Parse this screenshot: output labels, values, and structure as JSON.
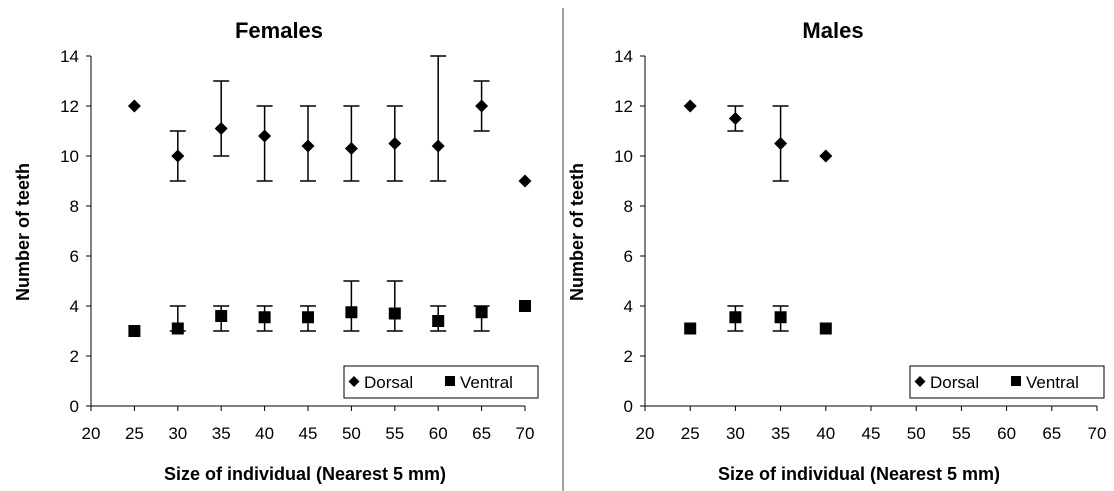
{
  "chart_data": [
    {
      "type": "scatter",
      "title": "Females",
      "xlabel": "Size of individual (Nearest 5 mm)",
      "ylabel": "Number of teeth",
      "xlim": [
        20,
        70
      ],
      "ylim": [
        0,
        14
      ],
      "xticks": [
        "20",
        "25",
        "30",
        "35",
        "40",
        "45",
        "50",
        "55",
        "60",
        "65",
        "70"
      ],
      "yticks": [
        "0",
        "2",
        "4",
        "6",
        "8",
        "10",
        "12",
        "14"
      ],
      "legend_position": "bottom-right",
      "series": [
        {
          "name": "Dorsal",
          "marker": "diamond",
          "color": "#000000",
          "points": [
            {
              "x": 25,
              "y": 12
            },
            {
              "x": 30,
              "y": 10,
              "low": 9,
              "high": 11
            },
            {
              "x": 35,
              "y": 11.1,
              "low": 10,
              "high": 13
            },
            {
              "x": 40,
              "y": 10.8,
              "low": 9,
              "high": 12
            },
            {
              "x": 45,
              "y": 10.4,
              "low": 9,
              "high": 12
            },
            {
              "x": 50,
              "y": 10.3,
              "low": 9,
              "high": 12
            },
            {
              "x": 55,
              "y": 10.5,
              "low": 9,
              "high": 12
            },
            {
              "x": 60,
              "y": 10.4,
              "low": 9,
              "high": 14
            },
            {
              "x": 65,
              "y": 12,
              "low": 11,
              "high": 13
            },
            {
              "x": 70,
              "y": 9
            }
          ]
        },
        {
          "name": "Ventral",
          "marker": "square",
          "color": "#000000",
          "points": [
            {
              "x": 25,
              "y": 3
            },
            {
              "x": 30,
              "y": 3.1,
              "low": 3,
              "high": 4
            },
            {
              "x": 35,
              "y": 3.6,
              "low": 3,
              "high": 4
            },
            {
              "x": 40,
              "y": 3.55,
              "low": 3,
              "high": 4
            },
            {
              "x": 45,
              "y": 3.55,
              "low": 3,
              "high": 4
            },
            {
              "x": 50,
              "y": 3.75,
              "low": 3,
              "high": 5
            },
            {
              "x": 55,
              "y": 3.7,
              "low": 3,
              "high": 5
            },
            {
              "x": 60,
              "y": 3.4,
              "low": 3,
              "high": 4
            },
            {
              "x": 65,
              "y": 3.75,
              "low": 3,
              "high": 4
            },
            {
              "x": 70,
              "y": 4
            }
          ]
        }
      ]
    },
    {
      "type": "scatter",
      "title": "Males",
      "xlabel": "Size of individual (Nearest 5 mm)",
      "ylabel": "Number of teeth",
      "xlim": [
        20,
        70
      ],
      "ylim": [
        0,
        14
      ],
      "xticks": [
        "20",
        "25",
        "30",
        "35",
        "40",
        "45",
        "50",
        "55",
        "60",
        "65",
        "70"
      ],
      "yticks": [
        "0",
        "2",
        "4",
        "6",
        "8",
        "10",
        "12",
        "14"
      ],
      "legend_position": "bottom-right",
      "series": [
        {
          "name": "Dorsal",
          "marker": "diamond",
          "color": "#000000",
          "points": [
            {
              "x": 25,
              "y": 12
            },
            {
              "x": 30,
              "y": 11.5,
              "low": 11,
              "high": 12
            },
            {
              "x": 35,
              "y": 10.5,
              "low": 9,
              "high": 12
            },
            {
              "x": 40,
              "y": 10
            }
          ]
        },
        {
          "name": "Ventral",
          "marker": "square",
          "color": "#000000",
          "points": [
            {
              "x": 25,
              "y": 3.1
            },
            {
              "x": 30,
              "y": 3.55,
              "low": 3,
              "high": 4
            },
            {
              "x": 35,
              "y": 3.55,
              "low": 3,
              "high": 4
            },
            {
              "x": 40,
              "y": 3.1
            }
          ]
        }
      ]
    }
  ],
  "colors": {
    "divider": "#808080",
    "axis": "#000000",
    "marker": "#000000"
  }
}
